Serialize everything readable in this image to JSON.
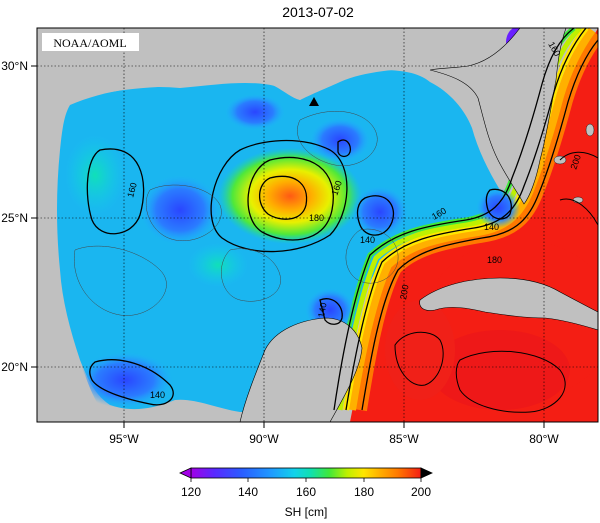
{
  "title": "2013-07-02",
  "credit": "NOAA/AOML",
  "x_tick_labels": [
    "95°W",
    "90°W",
    "85°W",
    "80°W"
  ],
  "y_tick_labels": [
    "30°N",
    "25°N",
    "20°N"
  ],
  "colorbar": {
    "label": "SH [cm]",
    "tick_labels": [
      "120",
      "140",
      "160",
      "180",
      "200"
    ],
    "colors": [
      "#a200e6",
      "#5a28ff",
      "#2a5cff",
      "#1f9bff",
      "#12d2ea",
      "#10e0b0",
      "#3fe83c",
      "#bff000",
      "#ffe600",
      "#ffb000",
      "#ff7800",
      "#ff3c10",
      "#f41e14"
    ]
  },
  "contour_labels": {
    "west_160": "160",
    "center_160": "160",
    "center_180": "180",
    "center_140": "140",
    "south_140": "140",
    "southwest_140": "140",
    "loop_160": "160",
    "loop_180": "180",
    "loop_200": "200",
    "florida_140": "140",
    "ne_160": "160",
    "east_200": "200"
  },
  "chart_data": {
    "type": "heatmap",
    "title": "2013-07-02",
    "variable": "SH [cm]",
    "colorbar_range": [
      120,
      200
    ],
    "colorbar_ticks": [
      120,
      140,
      160,
      180,
      200
    ],
    "lon_range": [
      -98,
      -78
    ],
    "lat_range": [
      18,
      31
    ],
    "x_ticks": [
      "95°W",
      "90°W",
      "85°W",
      "80°W"
    ],
    "y_ticks": [
      "30°N",
      "25°N",
      "20°N"
    ],
    "contour_levels": [
      140,
      160,
      180,
      200
    ],
    "grid": true,
    "marker": {
      "type": "triangle",
      "lon": -88.3,
      "lat": 28.8
    }
  }
}
